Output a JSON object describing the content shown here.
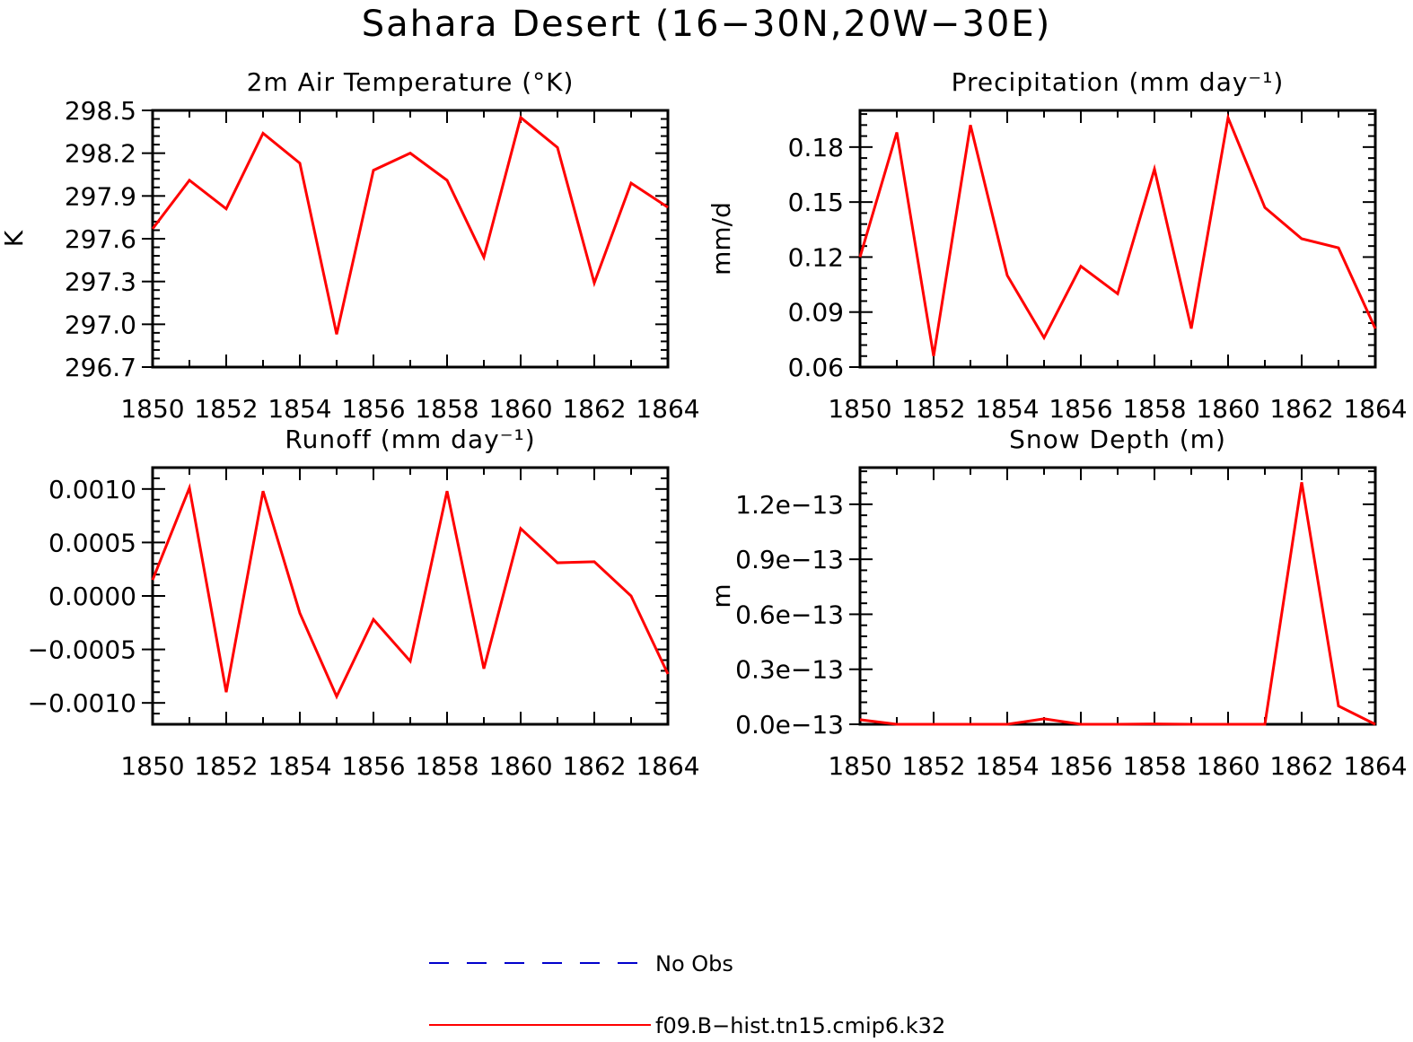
{
  "suptitle": "Sahara Desert (16−30N,20W−30E)",
  "colors": {
    "model": "#ff0000",
    "obs": "#0000cc",
    "axis": "#000000"
  },
  "legend": {
    "items": [
      {
        "label": "No Obs",
        "style": "dashed",
        "color": "#0000cc"
      },
      {
        "label": "f09.B−hist.tn15.cmip6.k32",
        "style": "solid",
        "color": "#ff0000"
      }
    ]
  },
  "chart_data": [
    {
      "type": "line",
      "title": "2m Air Temperature (°K)",
      "ylabel": "K",
      "xlim": [
        1850,
        1864
      ],
      "ylim": [
        296.7,
        298.5
      ],
      "xticks": [
        1850,
        1852,
        1854,
        1856,
        1858,
        1860,
        1862,
        1864
      ],
      "yticks": [
        296.7,
        297.0,
        297.3,
        297.6,
        297.9,
        298.2,
        298.5
      ],
      "ytick_labels": [
        "296.7",
        "297.0",
        "297.3",
        "297.6",
        "297.9",
        "298.2",
        "298.5"
      ],
      "x": [
        1850,
        1851,
        1852,
        1853,
        1854,
        1855,
        1856,
        1857,
        1858,
        1859,
        1860,
        1861,
        1862,
        1863,
        1864
      ],
      "series": [
        {
          "name": "f09.B−hist.tn15.cmip6.k32",
          "values": [
            297.67,
            298.01,
            297.81,
            298.34,
            298.13,
            296.93,
            298.08,
            298.2,
            298.01,
            297.47,
            298.45,
            298.24,
            297.29,
            297.99,
            297.82
          ]
        }
      ]
    },
    {
      "type": "line",
      "title": "Precipitation (mm day⁻¹)",
      "ylabel": "mm/d",
      "xlim": [
        1850,
        1864
      ],
      "ylim": [
        0.06,
        0.2
      ],
      "xticks": [
        1850,
        1852,
        1854,
        1856,
        1858,
        1860,
        1862,
        1864
      ],
      "yticks": [
        0.06,
        0.09,
        0.12,
        0.15,
        0.18
      ],
      "ytick_labels": [
        "0.06",
        "0.09",
        "0.12",
        "0.15",
        "0.18"
      ],
      "x": [
        1850,
        1851,
        1852,
        1853,
        1854,
        1855,
        1856,
        1857,
        1858,
        1859,
        1860,
        1861,
        1862,
        1863,
        1864
      ],
      "series": [
        {
          "name": "f09.B−hist.tn15.cmip6.k32",
          "values": [
            0.12,
            0.188,
            0.066,
            0.192,
            0.11,
            0.076,
            0.115,
            0.1,
            0.168,
            0.081,
            0.196,
            0.147,
            0.13,
            0.125,
            0.081
          ]
        }
      ]
    },
    {
      "type": "line",
      "title": "Runoff (mm day⁻¹)",
      "ylabel": "",
      "xlim": [
        1850,
        1864
      ],
      "ylim": [
        -0.0012,
        0.0012
      ],
      "xticks": [
        1850,
        1852,
        1854,
        1856,
        1858,
        1860,
        1862,
        1864
      ],
      "yticks": [
        -0.001,
        -0.0005,
        0,
        0.0005,
        0.001
      ],
      "ytick_labels": [
        "−0.0010",
        "−0.0005",
        "0.0000",
        "0.0005",
        "0.0010"
      ],
      "x": [
        1850,
        1851,
        1852,
        1853,
        1854,
        1855,
        1856,
        1857,
        1858,
        1859,
        1860,
        1861,
        1862,
        1863,
        1864
      ],
      "series": [
        {
          "name": "f09.B−hist.tn15.cmip6.k32",
          "values": [
            0.00015,
            0.00101,
            -0.0009,
            0.00098,
            -0.00016,
            -0.00094,
            -0.00022,
            -0.00061,
            0.00098,
            -0.00068,
            0.00063,
            0.00031,
            0.00032,
            0.0,
            -0.00073
          ]
        }
      ]
    },
    {
      "type": "line",
      "title": "Snow Depth (m)",
      "ylabel": "m",
      "xlim": [
        1850,
        1864
      ],
      "ylim": [
        0,
        1.4e-13
      ],
      "xticks": [
        1850,
        1852,
        1854,
        1856,
        1858,
        1860,
        1862,
        1864
      ],
      "yticks": [
        0,
        3e-14,
        6e-14,
        9e-14,
        1.2e-13
      ],
      "ytick_labels": [
        "0.0e−13",
        "0.3e−13",
        "0.6e−13",
        "0.9e−13",
        "1.2e−13"
      ],
      "x": [
        1850,
        1851,
        1852,
        1853,
        1854,
        1855,
        1856,
        1857,
        1858,
        1859,
        1860,
        1861,
        1862,
        1863,
        1864
      ],
      "series": [
        {
          "name": "f09.B−hist.tn15.cmip6.k32",
          "values": [
            2.5e-15,
            0,
            0,
            0,
            0,
            3e-15,
            0,
            0,
            2e-16,
            0,
            0,
            0,
            1.32e-13,
            1e-14,
            0
          ]
        }
      ]
    }
  ]
}
